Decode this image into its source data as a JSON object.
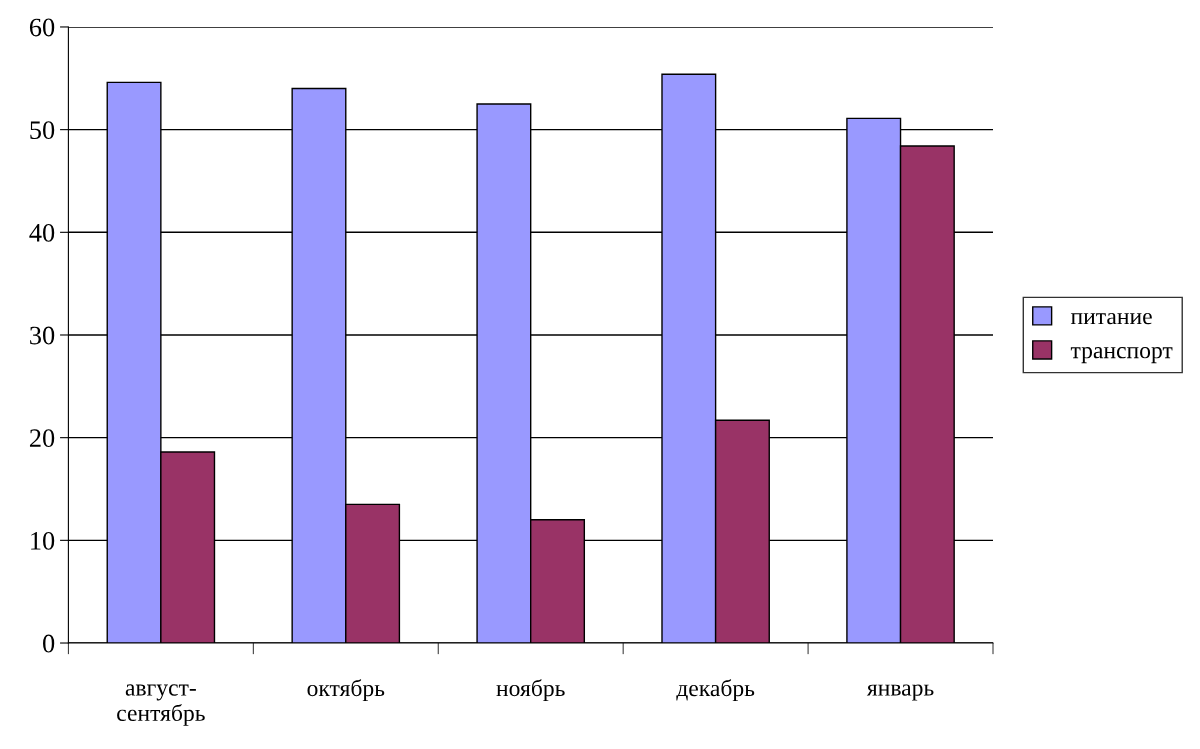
{
  "chart_data": {
    "type": "bar",
    "categories": [
      "август-\nсентябрь",
      "октябрь",
      "ноябрь",
      "декабрь",
      "январь"
    ],
    "series": [
      {
        "name": "питание",
        "color": "#9999ff",
        "values": [
          54.6,
          54.0,
          52.5,
          55.4,
          51.1
        ]
      },
      {
        "name": "транспорт",
        "color": "#993366",
        "values": [
          18.6,
          13.5,
          12.0,
          21.7,
          48.4
        ]
      }
    ],
    "ylim": [
      0,
      60
    ],
    "yticks": [
      0,
      10,
      20,
      30,
      40,
      50,
      60
    ],
    "grid": "y",
    "legend": "right"
  }
}
